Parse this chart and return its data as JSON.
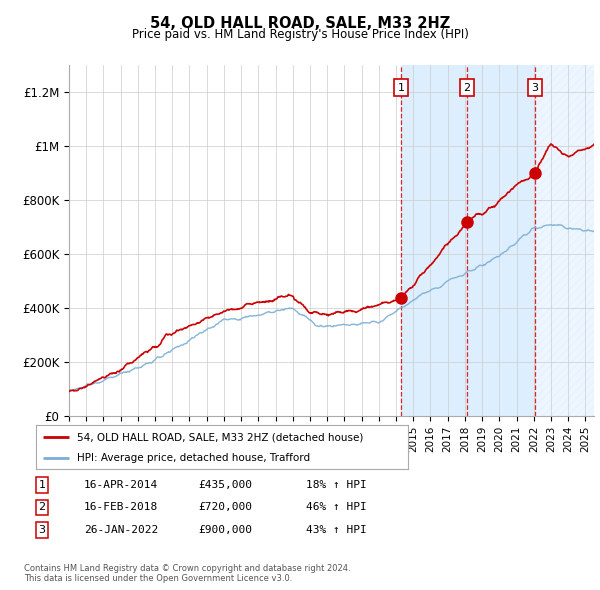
{
  "title": "54, OLD HALL ROAD, SALE, M33 2HZ",
  "subtitle": "Price paid vs. HM Land Registry's House Price Index (HPI)",
  "background_color": "#ffffff",
  "plot_bg_color": "#ffffff",
  "grid_color": "#cccccc",
  "red_color": "#cc0000",
  "blue_color": "#7aadd4",
  "shaded_color": "#ddeeff",
  "sale_dates": [
    2014.29,
    2018.12,
    2022.07
  ],
  "sale_prices": [
    435000,
    720000,
    900000
  ],
  "sale_labels": [
    "1",
    "2",
    "3"
  ],
  "sale_info": [
    {
      "label": "1",
      "date": "16-APR-2014",
      "price": "£435,000",
      "hpi": "18% ↑ HPI"
    },
    {
      "label": "2",
      "date": "16-FEB-2018",
      "price": "£720,000",
      "hpi": "46% ↑ HPI"
    },
    {
      "label": "3",
      "date": "26-JAN-2022",
      "price": "£900,000",
      "hpi": "43% ↑ HPI"
    }
  ],
  "legend1": "54, OLD HALL ROAD, SALE, M33 2HZ (detached house)",
  "legend2": "HPI: Average price, detached house, Trafford",
  "footnote": "Contains HM Land Registry data © Crown copyright and database right 2024.\nThis data is licensed under the Open Government Licence v3.0.",
  "xmin": 1995,
  "xmax": 2025.5,
  "ymin": 0,
  "ymax": 1300000,
  "yticks": [
    0,
    200000,
    400000,
    600000,
    800000,
    1000000,
    1200000
  ],
  "ytick_labels": [
    "£0",
    "£200K",
    "£400K",
    "£600K",
    "£800K",
    "£1M",
    "£1.2M"
  ]
}
